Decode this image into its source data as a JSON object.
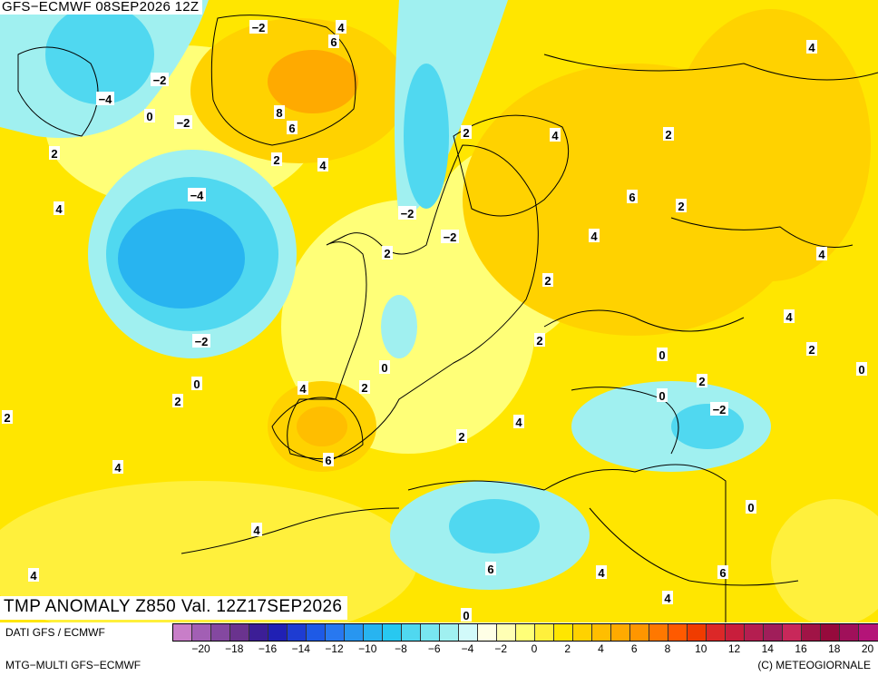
{
  "header": {
    "run_label": "GFS−ECMWF  08SEP2026  12Z",
    "title": "TMP ANOMALY Z850 Val. 12Z17SEP2026"
  },
  "footer": {
    "source": "DATI GFS / ECMWF",
    "model": "MTG−MULTI GFS−ECMWF",
    "copyright": "(C) METEOGIORNALE"
  },
  "legend": {
    "tick_labels": [
      "−20",
      "−18",
      "−16",
      "−14",
      "−12",
      "−10",
      "−8",
      "−6",
      "−4",
      "−2",
      "0",
      "2",
      "4",
      "6",
      "8",
      "10",
      "12",
      "14",
      "16",
      "18",
      "20"
    ],
    "colors": [
      "#c87ec8",
      "#a25fb4",
      "#8448a0",
      "#6a338e",
      "#3c1e96",
      "#2020b4",
      "#1e3cd2",
      "#1e5ae6",
      "#2878f0",
      "#2896f0",
      "#28b4f0",
      "#28c8f0",
      "#50d8f0",
      "#78e6f0",
      "#a0f0f0",
      "#d2fafa",
      "#ffffe6",
      "#ffffb4",
      "#ffff78",
      "#fff03c",
      "#ffe600",
      "#ffd200",
      "#ffbe00",
      "#ffaa00",
      "#ff9600",
      "#ff7800",
      "#ff5a00",
      "#f03c00",
      "#dc2828",
      "#c81e3c",
      "#b41e50",
      "#a01e5a",
      "#c8285a",
      "#a01446",
      "#960a3c",
      "#a0105a",
      "#b41478"
    ]
  },
  "map_labels": [
    {
      "text": "−2"
    },
    {
      "text": "4"
    },
    {
      "text": "6"
    },
    {
      "text": "−2"
    },
    {
      "text": "−4"
    },
    {
      "text": "0"
    },
    {
      "text": "−2"
    },
    {
      "text": "8"
    },
    {
      "text": "6"
    },
    {
      "text": "2"
    },
    {
      "text": "4"
    },
    {
      "text": "2"
    },
    {
      "text": "4"
    },
    {
      "text": "−4"
    },
    {
      "text": "−2"
    },
    {
      "text": "0"
    },
    {
      "text": "2"
    },
    {
      "text": "−2"
    },
    {
      "text": "0"
    },
    {
      "text": "2"
    },
    {
      "text": "4"
    },
    {
      "text": "2"
    },
    {
      "text": "4"
    },
    {
      "text": "2"
    },
    {
      "text": "6"
    },
    {
      "text": "4"
    },
    {
      "text": "4"
    },
    {
      "text": "4"
    },
    {
      "text": "6"
    },
    {
      "text": "6"
    },
    {
      "text": "4"
    },
    {
      "text": "2"
    },
    {
      "text": "2"
    },
    {
      "text": "4"
    },
    {
      "text": "0"
    },
    {
      "text": "2"
    },
    {
      "text": "0"
    },
    {
      "text": "0"
    },
    {
      "text": "2"
    },
    {
      "text": "−2"
    },
    {
      "text": "0"
    },
    {
      "text": "4"
    },
    {
      "text": "2"
    },
    {
      "text": "4"
    },
    {
      "text": "6"
    },
    {
      "text": "2"
    },
    {
      "text": "4"
    },
    {
      "text": "4"
    },
    {
      "text": "−2"
    },
    {
      "text": "4"
    },
    {
      "text": "0"
    },
    {
      "text": "2"
    },
    {
      "text": "2"
    },
    {
      "text": "0"
    }
  ],
  "colors": {
    "strong_warm": "#ffaa00",
    "warm": "#ffd200",
    "mild_warm": "#fff03c",
    "neutral": "#ffffb4",
    "mild_cold": "#a0f0f0",
    "cold": "#50d8f0",
    "strong_cold": "#28b4f0"
  }
}
